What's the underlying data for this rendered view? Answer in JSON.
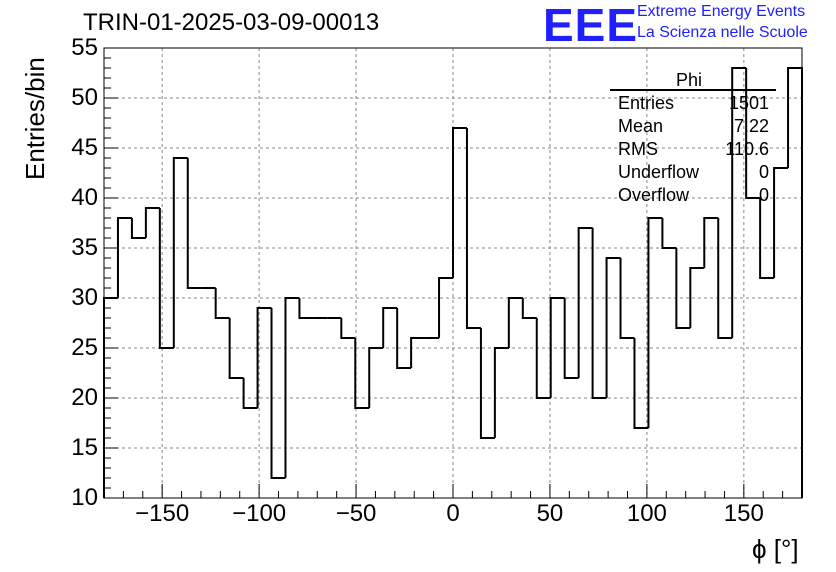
{
  "header": {
    "run_title": "TRIN-01-2025-03-09-00013",
    "logo_text": "EEE",
    "logo_line1": "Extreme Energy Events",
    "logo_line2": "La Scienza nelle Scuole"
  },
  "stats_box": {
    "title": "Phi",
    "rows": [
      {
        "name": "Entries",
        "value": "1501"
      },
      {
        "name": "Mean",
        "value": "7.22"
      },
      {
        "name": "RMS",
        "value": "110.6"
      },
      {
        "name": "Underflow",
        "value": "0"
      },
      {
        "name": "Overflow",
        "value": "0"
      }
    ]
  },
  "colors": {
    "logo": "#1f1fff",
    "line": "#000000",
    "grid": "#888888"
  },
  "chart_data": {
    "type": "histogram",
    "title": "TRIN-01-2025-03-09-00013",
    "xlabel": "ϕ [°]",
    "ylabel": "Entries/bin",
    "xlim": [
      -180,
      180
    ],
    "ylim": [
      10,
      55
    ],
    "grid": true,
    "bin_width": 7.2,
    "x_ticks": [
      -150,
      -100,
      -50,
      0,
      50,
      100,
      150
    ],
    "x_tick_labels": [
      "−150",
      "−100",
      "−50",
      "0",
      "50",
      "100",
      "150"
    ],
    "y_ticks": [
      10,
      15,
      20,
      25,
      30,
      35,
      40,
      45,
      50,
      55
    ],
    "y_tick_labels": [
      "10",
      "15",
      "20",
      "25",
      "30",
      "35",
      "40",
      "45",
      "50",
      "55"
    ],
    "values": [
      30,
      38,
      36,
      39,
      25,
      44,
      31,
      31,
      28,
      22,
      19,
      29,
      12,
      30,
      28,
      28,
      28,
      26,
      19,
      25,
      29,
      23,
      26,
      26,
      32,
      47,
      27,
      16,
      25,
      30,
      28,
      20,
      30,
      22,
      37,
      20,
      34,
      26,
      17,
      38,
      35,
      27,
      33,
      38,
      26,
      53,
      40,
      32,
      43,
      53
    ]
  }
}
